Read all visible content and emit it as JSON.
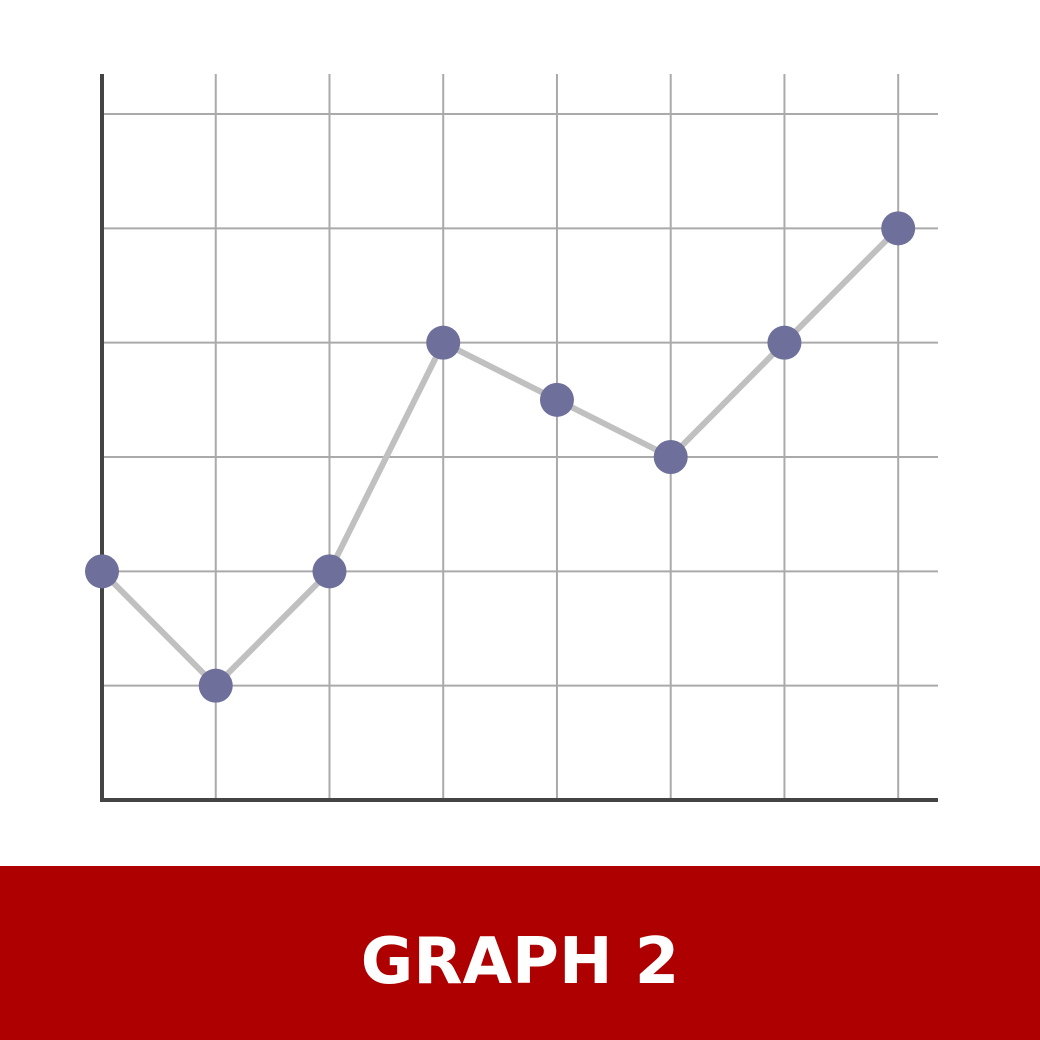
{
  "banner": {
    "title": "GRAPH 2"
  },
  "colors": {
    "background": "#ffffff",
    "banner": "#ae0000",
    "banner_text": "#ffffff",
    "grid": "#aaaaaa",
    "axis": "#444444",
    "line": "#c0c0c0",
    "marker": "#6e6f9a"
  },
  "chart_data": {
    "type": "line",
    "title": "",
    "xlabel": "",
    "ylabel": "",
    "x": [
      0,
      1,
      2,
      3,
      4,
      5,
      6,
      7
    ],
    "xlim": [
      0,
      7.35
    ],
    "ylim": [
      0,
      6.35
    ],
    "x_gridlines": [
      1,
      2,
      3,
      4,
      5,
      6,
      7
    ],
    "y_gridlines": [
      1,
      2,
      3,
      4,
      5,
      6
    ],
    "grid": true,
    "tick_labels": false,
    "legend": "none",
    "series": [
      {
        "values": [
          2,
          1,
          2,
          4,
          3.5,
          3,
          4,
          5
        ]
      }
    ]
  }
}
